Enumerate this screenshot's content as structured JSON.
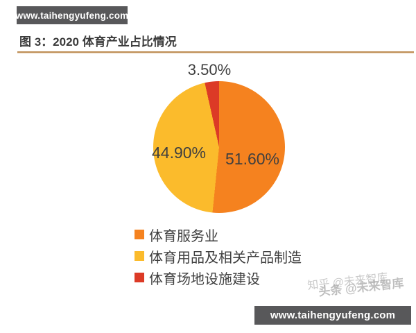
{
  "page": {
    "top_badge": "www.taihengyufeng.com",
    "bottom_badge": "www.taihengyufeng.com",
    "title": "图 3：2020 体育产业占比情况",
    "watermark_line1": "知乎 @未来智库",
    "watermark_line2": "头条 @未来智库"
  },
  "colors": {
    "badge_background": "#58585a",
    "title_underline": "#bf8f58",
    "label_text": "#3f3f3f"
  },
  "chart_data": {
    "type": "pie",
    "title": "2020 体育产业占比情况",
    "start_angle_deg": 0,
    "direction": "clockwise",
    "legend_position": "bottom-left",
    "slices": [
      {
        "label": "体育服务业",
        "value": 51.6,
        "display": "51.60%",
        "color": "#f5821f",
        "label_position": "inside-right"
      },
      {
        "label": "体育用品及相关产品制造",
        "value": 44.9,
        "display": "44.90%",
        "color": "#fbbb2c",
        "label_position": "inside-left"
      },
      {
        "label": "体育场地设施建设",
        "value": 3.5,
        "display": "3.50%",
        "color": "#dc3a26",
        "label_position": "outside-top"
      }
    ]
  }
}
